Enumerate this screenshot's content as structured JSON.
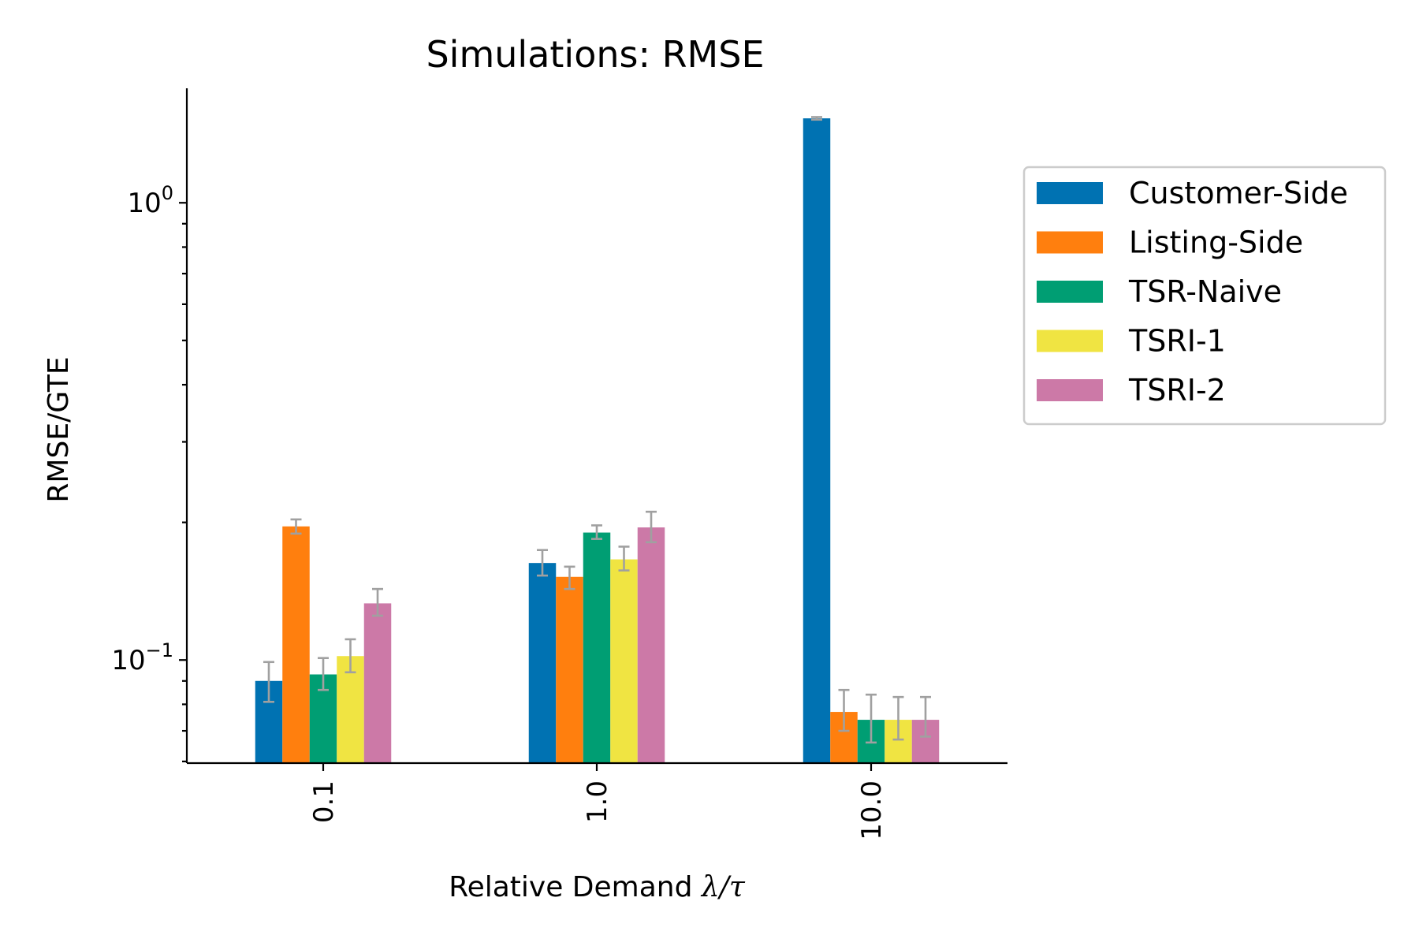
{
  "chart_data": {
    "type": "bar",
    "title": "Simulations: RMSE",
    "xlabel_text": "Relative Demand ",
    "xlabel_math": "λ/τ",
    "ylabel": "RMSE/GTE",
    "yscale": "log",
    "ylim": [
      0.0595,
      1.78
    ],
    "yticks": [
      {
        "base": "10",
        "exp": "−1",
        "value": 0.1
      },
      {
        "base": "10",
        "exp": "0",
        "value": 1.0
      }
    ],
    "categories": [
      "0.1",
      "1.0",
      "10.0"
    ],
    "series": [
      {
        "name": "Customer-Side",
        "color": "#0072b2",
        "values": [
          0.09,
          0.163,
          1.53
        ],
        "errors": [
          [
            0.081,
            0.099
          ],
          [
            0.153,
            0.174
          ],
          [
            1.52,
            1.54
          ]
        ]
      },
      {
        "name": "Listing-Side",
        "color": "#ff7f0e",
        "values": [
          0.196,
          0.152,
          0.077
        ],
        "errors": [
          [
            0.189,
            0.203
          ],
          [
            0.143,
            0.16
          ],
          [
            0.07,
            0.086
          ]
        ]
      },
      {
        "name": "TSR-Naive",
        "color": "#009e73",
        "values": [
          0.093,
          0.19,
          0.074
        ],
        "errors": [
          [
            0.086,
            0.101
          ],
          [
            0.184,
            0.197
          ],
          [
            0.066,
            0.084
          ]
        ]
      },
      {
        "name": "TSRI-1",
        "color": "#f0e442",
        "values": [
          0.102,
          0.166,
          0.074
        ],
        "errors": [
          [
            0.094,
            0.111
          ],
          [
            0.157,
            0.177
          ],
          [
            0.067,
            0.083
          ]
        ]
      },
      {
        "name": "TSRI-2",
        "color": "#cc79a7",
        "values": [
          0.133,
          0.195,
          0.074
        ],
        "errors": [
          [
            0.125,
            0.143
          ],
          [
            0.181,
            0.211
          ],
          [
            0.068,
            0.083
          ]
        ]
      }
    ],
    "legend_position": "outside right, top",
    "grid": false
  }
}
